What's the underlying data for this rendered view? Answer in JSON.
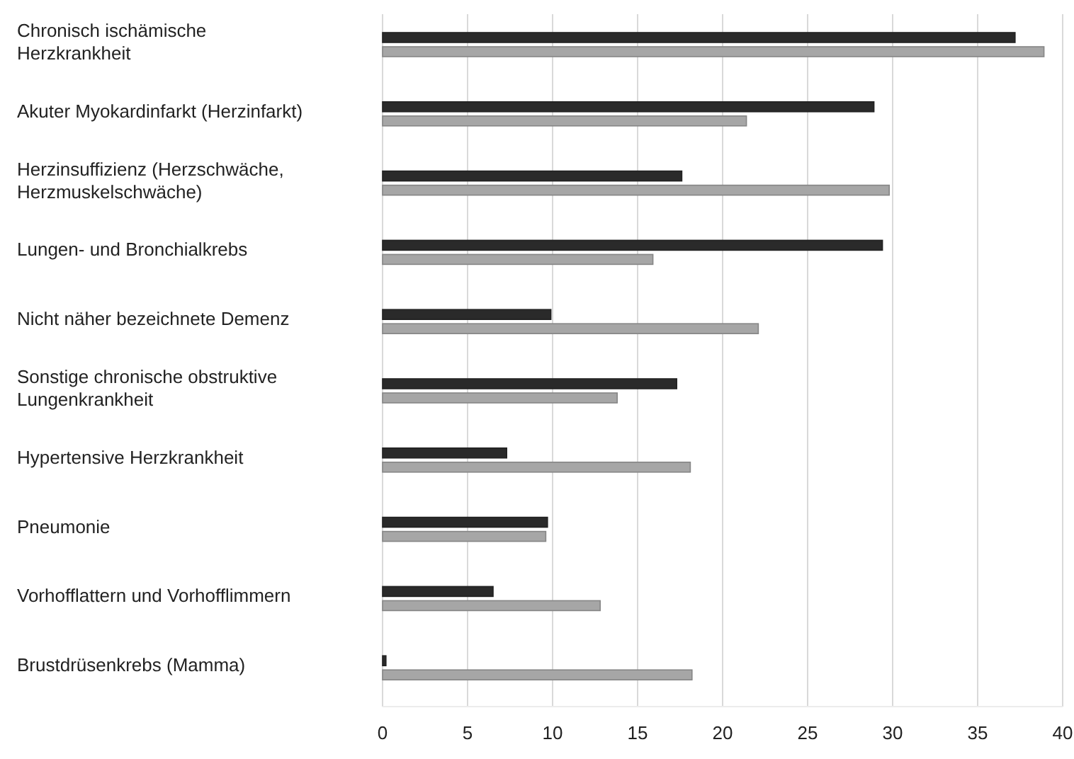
{
  "chart_data": {
    "type": "bar",
    "orientation": "horizontal",
    "categories": [
      "Chronisch ischämische\nHerzkrankheit",
      "Akuter Myokardinfarkt (Herzinfarkt)",
      "Herzinsuffizienz (Herzschwäche,\nHerzmuskelschwäche)",
      "Lungen- und Bronchialkrebs",
      "Nicht näher bezeichnete Demenz",
      "Sonstige chronische obstruktive\nLungenkrankheit",
      "Hypertensive Herzkrankheit",
      "Pneumonie",
      "Vorhofflattern und Vorhofflimmern",
      "Brustdrüsenkrebs (Mamma)"
    ],
    "series": [
      {
        "color": "#2a2a2a",
        "values": [
          37.2,
          28.9,
          17.6,
          29.4,
          9.9,
          17.3,
          7.3,
          9.7,
          6.5,
          0.2
        ]
      },
      {
        "color": "#a6a6a6",
        "values": [
          38.9,
          21.4,
          29.8,
          15.9,
          22.1,
          13.8,
          18.1,
          9.6,
          12.8,
          18.2
        ]
      }
    ],
    "xlim": [
      0,
      40
    ],
    "xticks": [
      0,
      5,
      10,
      15,
      20,
      25,
      30,
      35,
      40
    ],
    "grid": "x"
  }
}
